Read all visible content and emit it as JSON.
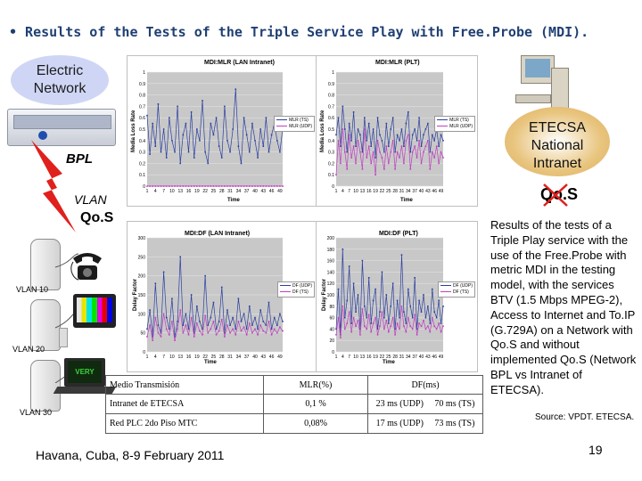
{
  "slide": {
    "title": "• Results of the Tests of the Triple Service Play with Free.Probe (MDI).",
    "labels": {
      "electric_line1": "Electric",
      "electric_line2": "Network",
      "etecsa_line1": "ETECSA",
      "etecsa_line2": "National",
      "etecsa_line3": "Intranet",
      "bpl": "BPL",
      "vlan": "VLAN",
      "qos_left": "Qo.S",
      "qos_right": "Qo.S",
      "vlan10": "VLAN 10",
      "vlan20": "VLAN 20",
      "vlan30": "VLAN 30",
      "screen_text": "VERY"
    },
    "description": "Results of the tests of a Triple Play service with the use of the Free.Probe with metric MDI in the testing model, with the services BTV (1.5 Mbps MPEG-2), Access to Internet and To.IP (G.729A) on a Network with Qo.S and without implemented Qo.S (Network BPL vs Intranet of ETECSA).",
    "source": "Source: VPDT. ETECSA.",
    "footer": "Havana, Cuba, 8-9 February 2011",
    "page_number": "19"
  },
  "colors": {
    "title": "#1f3f73",
    "cloud_blue": "#cfd6f5",
    "cloud_orange": "#e0b060",
    "lightning": "#e0201c",
    "series_blue": "#2b3f9e",
    "series_pink": "#c040c0"
  },
  "table": {
    "header": [
      "Medio Transmisión",
      "MLR(%)",
      "DF(ms)"
    ],
    "rows": [
      [
        "Intranet de ETECSA",
        "0,1 %",
        "23 ms (UDP)     70 ms (TS)"
      ],
      [
        "Red PLC 2do Piso MTC",
        "0,08%",
        "17 ms (UDP)     73 ms (TS)"
      ]
    ]
  },
  "chart_data": [
    {
      "type": "line",
      "title": "MDI:MLR (LAN Intranet)",
      "ylabel": "Media Loss Rate",
      "xlabel": "Time",
      "ylim": [
        0,
        1
      ],
      "y_ticks": [
        "0",
        "0.1",
        "0.2",
        "0.3",
        "0.4",
        "0.5",
        "0.6",
        "0.7",
        "0.8",
        "0.9",
        "1"
      ],
      "x_ticks": [
        "1",
        "4",
        "7",
        "10",
        "13",
        "16",
        "19",
        "22",
        "25",
        "28",
        "31",
        "34",
        "37",
        "40",
        "43",
        "46",
        "49"
      ],
      "legend": "right",
      "series": [
        {
          "name": "MLR (TS)",
          "color": "#2b3f9e",
          "values": [
            0.62,
            0.28,
            0.55,
            0.35,
            0.72,
            0.3,
            0.5,
            0.25,
            0.6,
            0.4,
            0.3,
            0.7,
            0.2,
            0.45,
            0.55,
            0.3,
            0.65,
            0.25,
            0.5,
            0.4,
            0.75,
            0.3,
            0.2,
            0.55,
            0.45,
            0.6,
            0.35,
            0.25,
            0.7,
            0.4,
            0.3,
            0.5,
            0.85,
            0.35,
            0.2,
            0.6,
            0.45,
            0.3,
            0.55,
            0.4,
            0.25,
            0.5,
            0.35,
            0.6,
            0.3,
            0.45,
            0.55,
            0.4,
            0.3,
            0.5
          ]
        },
        {
          "name": "MLR (UDP)",
          "color": "#c040c0",
          "values": [
            0,
            0,
            0,
            0,
            0,
            0,
            0,
            0,
            0,
            0,
            0,
            0,
            0,
            0,
            0,
            0,
            0,
            0,
            0,
            0,
            0,
            0,
            0,
            0,
            0,
            0,
            0,
            0,
            0,
            0,
            0,
            0,
            0,
            0,
            0,
            0,
            0,
            0,
            0,
            0,
            0,
            0,
            0,
            0,
            0,
            0,
            0,
            0,
            0,
            0
          ]
        }
      ]
    },
    {
      "type": "line",
      "title": "MDI:MLR (PLT)",
      "ylabel": "Media Loss Rate",
      "xlabel": "Time",
      "ylim": [
        0,
        1
      ],
      "y_ticks": [
        "0",
        "0.1",
        "0.2",
        "0.3",
        "0.4",
        "0.5",
        "0.6",
        "0.7",
        "0.8",
        "0.9",
        "1"
      ],
      "x_ticks": [
        "1",
        "4",
        "7",
        "10",
        "13",
        "16",
        "19",
        "22",
        "25",
        "28",
        "31",
        "34",
        "37",
        "40",
        "43",
        "46",
        "49"
      ],
      "legend": "right",
      "series": [
        {
          "name": "MLR (TS)",
          "color": "#2b3f9e",
          "values": [
            0.45,
            0.6,
            0.35,
            0.7,
            0.5,
            0.3,
            0.55,
            0.4,
            0.65,
            0.35,
            0.5,
            0.45,
            0.3,
            0.6,
            0.4,
            0.55,
            0.35,
            0.5,
            0.25,
            0.6,
            0.45,
            0.4,
            0.3,
            0.55,
            0.35,
            0.5,
            0.6,
            0.3,
            0.45,
            0.4,
            0.5,
            0.35,
            0.55,
            0.65,
            0.3,
            0.45,
            0.5,
            0.4,
            0.6,
            0.35,
            0.45,
            0.5,
            0.55,
            0.3,
            0.45,
            0.4,
            0.5,
            0.35,
            0.45,
            0.4
          ]
        },
        {
          "name": "MLR (UDP)",
          "color": "#c040c0",
          "values": [
            0.1,
            0.4,
            0.2,
            0.5,
            0.3,
            0.15,
            0.45,
            0.25,
            0.35,
            0.2,
            0.4,
            0.3,
            0.15,
            0.5,
            0.25,
            0.35,
            0.2,
            0.3,
            0.1,
            0.4,
            0.3,
            0.25,
            0.15,
            0.35,
            0.2,
            0.3,
            0.4,
            0.15,
            0.3,
            0.25,
            0.35,
            0.2,
            0.4,
            0.45,
            0.15,
            0.3,
            0.35,
            0.25,
            0.4,
            0.2,
            0.3,
            0.35,
            0.4,
            0.15,
            0.3,
            0.25,
            0.35,
            0.2,
            0.3,
            0.25
          ]
        }
      ]
    },
    {
      "type": "line",
      "title": "MDI:DF (LAN Intranet)",
      "ylabel": "Delay Factor",
      "xlabel": "Time",
      "ylim": [
        0,
        300
      ],
      "y_ticks": [
        "0",
        "50",
        "100",
        "150",
        "200",
        "250",
        "300"
      ],
      "x_ticks": [
        "1",
        "4",
        "7",
        "10",
        "13",
        "16",
        "19",
        "22",
        "25",
        "28",
        "31",
        "34",
        "37",
        "40",
        "43",
        "46",
        "49"
      ],
      "legend": "right",
      "series": [
        {
          "name": "DF (UDP)",
          "color": "#2b3f9e",
          "values": [
            60,
            110,
            40,
            180,
            70,
            50,
            210,
            90,
            60,
            140,
            40,
            80,
            250,
            70,
            100,
            60,
            150,
            50,
            120,
            80,
            60,
            200,
            70,
            90,
            130,
            60,
            80,
            170,
            50,
            110,
            70,
            90,
            60,
            140,
            80,
            100,
            60,
            120,
            70,
            90,
            60,
            110,
            80,
            70,
            130,
            60,
            90,
            70,
            100,
            80
          ]
        },
        {
          "name": "DF (TS)",
          "color": "#c040c0",
          "values": [
            40,
            70,
            30,
            90,
            50,
            40,
            100,
            60,
            45,
            80,
            30,
            60,
            110,
            50,
            70,
            45,
            90,
            40,
            75,
            55,
            45,
            95,
            50,
            60,
            80,
            45,
            55,
            85,
            40,
            70,
            50,
            60,
            45,
            80,
            55,
            65,
            45,
            75,
            50,
            60,
            45,
            70,
            55,
            50,
            80,
            45,
            60,
            50,
            65,
            55
          ]
        }
      ]
    },
    {
      "type": "line",
      "title": "MDI:DF (PLT)",
      "ylabel": "Delay Factor",
      "xlabel": "Time",
      "ylim": [
        0,
        200
      ],
      "y_ticks": [
        "0",
        "20",
        "40",
        "60",
        "80",
        "100",
        "120",
        "140",
        "160",
        "180",
        "200"
      ],
      "x_ticks": [
        "1",
        "4",
        "7",
        "10",
        "13",
        "16",
        "19",
        "22",
        "25",
        "28",
        "31",
        "34",
        "37",
        "40",
        "43",
        "46",
        "49"
      ],
      "legend": "right",
      "series": [
        {
          "name": "DF (UDP)",
          "color": "#2b3f9e",
          "values": [
            40,
            110,
            30,
            180,
            60,
            90,
            150,
            50,
            120,
            70,
            100,
            40,
            160,
            80,
            60,
            130,
            50,
            90,
            110,
            40,
            70,
            140,
            60,
            100,
            50,
            80,
            120,
            40,
            90,
            60,
            170,
            70,
            50,
            110,
            80,
            60,
            130,
            40,
            90,
            70,
            100,
            60,
            80,
            50,
            110,
            70,
            60,
            90,
            50,
            80
          ]
        },
        {
          "name": "DF (TS)",
          "color": "#c040c0",
          "values": [
            30,
            60,
            25,
            80,
            40,
            50,
            70,
            35,
            60,
            45,
            55,
            30,
            75,
            45,
            40,
            65,
            35,
            50,
            60,
            30,
            45,
            70,
            40,
            55,
            35,
            45,
            60,
            30,
            50,
            40,
            80,
            45,
            35,
            60,
            45,
            40,
            65,
            30,
            50,
            45,
            55,
            40,
            45,
            35,
            60,
            45,
            40,
            50,
            35,
            45
          ]
        }
      ]
    }
  ]
}
